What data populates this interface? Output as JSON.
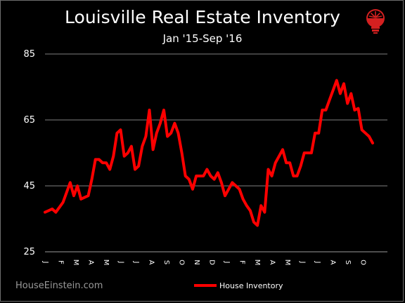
{
  "header": {
    "title": "Louisville Real Estate Inventory",
    "subtitle": "Jan '15-Sep '16"
  },
  "footer": {
    "source": "HouseEinstein.com"
  },
  "colors": {
    "background": "#000000",
    "line": "#ff0000",
    "gridline": "#7f7f7f",
    "logo": "#d42020"
  },
  "logo": {
    "icon": "lightbulb-icon"
  },
  "chart_data": {
    "type": "line",
    "title": "Louisville Real Estate Inventory",
    "subtitle": "Jan '15-Sep '16",
    "xlabel": "",
    "ylabel": "",
    "ylim": [
      25,
      85
    ],
    "yticks": [
      25,
      45,
      65,
      85
    ],
    "grid": true,
    "legend": "bottom-center",
    "x_tick_labels": [
      "J",
      "F",
      "M",
      "A",
      "M",
      "J",
      "J",
      "A",
      "S",
      "O",
      "N",
      "D",
      "J",
      "F",
      "M",
      "A",
      "M",
      "J",
      "J",
      "A",
      "S",
      "O"
    ],
    "series": [
      {
        "name": "House Inventory",
        "color": "#ff0000",
        "values": [
          37,
          37.5,
          38,
          37,
          38.5,
          40,
          43,
          46,
          42,
          45,
          41,
          41.5,
          42,
          47,
          53,
          53,
          52,
          52,
          50,
          54,
          61,
          62,
          54,
          55,
          57,
          50,
          51,
          57,
          60,
          68,
          56,
          61,
          64,
          68,
          60,
          61,
          64,
          61,
          55,
          48,
          47,
          44,
          48,
          48,
          48,
          50,
          48,
          47,
          49,
          46,
          42,
          44,
          46,
          45,
          44,
          41,
          39,
          37.5,
          34,
          33,
          39,
          37,
          50,
          48,
          52,
          54,
          56,
          52,
          52,
          48,
          48,
          51,
          55,
          55,
          55,
          61,
          61,
          68,
          68,
          71,
          74,
          77,
          73,
          76,
          70,
          73,
          68,
          68.5,
          62,
          61,
          60,
          58
        ]
      }
    ]
  }
}
